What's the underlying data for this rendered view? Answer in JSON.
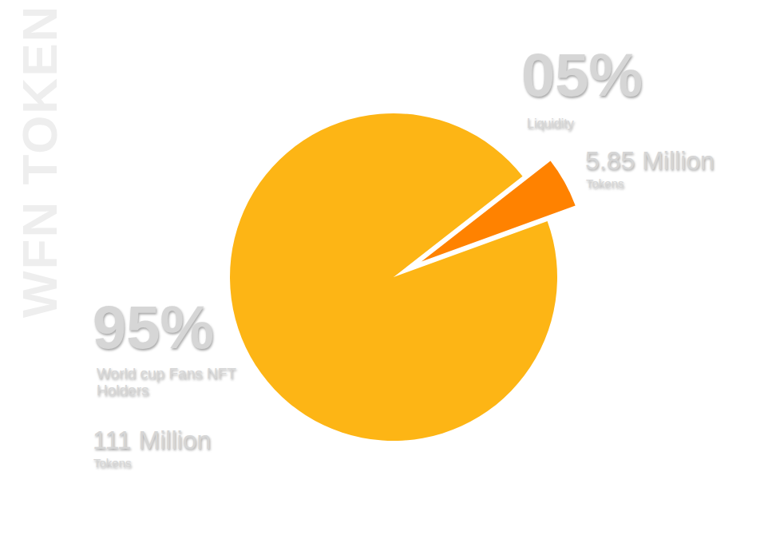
{
  "chart_data": {
    "type": "pie",
    "title": "WFN TOKEN",
    "categories": [
      "Liquidity",
      "World cup Fans NFT Holders"
    ],
    "values": [
      5,
      95
    ],
    "value_labels": [
      "05%",
      "95%"
    ],
    "colors": [
      "#ff8200",
      "#fdb515"
    ],
    "tokens": [
      "5.85 Million",
      "111 Million"
    ],
    "tokens_unit": "Tokens"
  }
}
